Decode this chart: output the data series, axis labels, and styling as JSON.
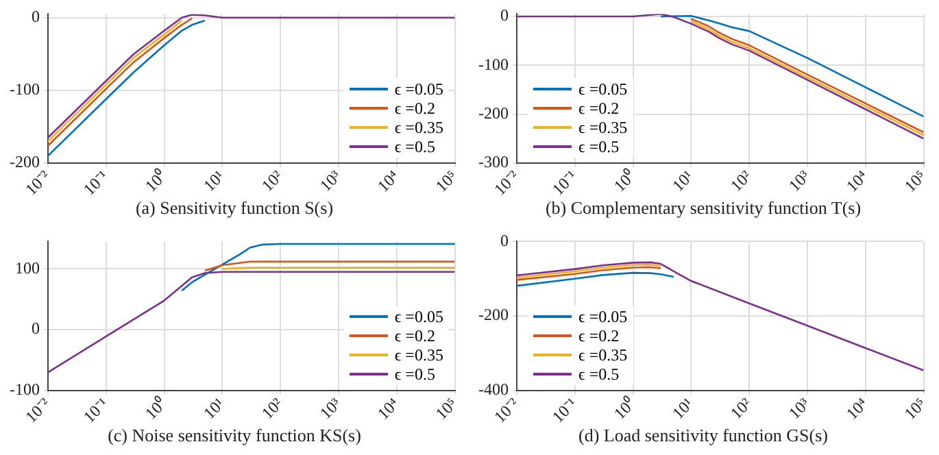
{
  "chart_data": [
    {
      "type": "line",
      "title": "(a) Sensitivity function S(s)",
      "log": "x",
      "grid": true,
      "legend": "bottom right",
      "xlim": [
        0.01,
        100000
      ],
      "xticks": [
        {
          "value": 0.01,
          "label": "10⁻²"
        },
        {
          "value": 0.1,
          "label": "10⁻¹"
        },
        {
          "value": 1,
          "label": "10⁰"
        },
        {
          "value": 10,
          "label": "10¹"
        },
        {
          "value": 100,
          "label": "10²"
        },
        {
          "value": 1000,
          "label": "10³"
        },
        {
          "value": 10000,
          "label": "10⁴"
        },
        {
          "value": 100000,
          "label": "10⁵"
        }
      ],
      "ylim": [
        -200,
        5
      ],
      "yticks": [
        -200,
        -100,
        0
      ],
      "series": [
        {
          "name": "ϵ =0.05",
          "color": "#0072bd",
          "x": [
            0.01,
            0.1,
            0.3,
            1,
            2,
            3,
            5
          ],
          "values": [
            -190,
            -112,
            -75,
            -38,
            -18,
            -10,
            -4
          ]
        },
        {
          "name": "ϵ =0.2",
          "color": "#d95319",
          "x": [
            0.01,
            0.1,
            0.3,
            1,
            2,
            3
          ],
          "values": [
            -176,
            -98,
            -61,
            -28,
            -10,
            -1
          ]
        },
        {
          "name": "ϵ =0.35",
          "color": "#edb120",
          "x": [
            0.01,
            0.1,
            0.3,
            1,
            2
          ],
          "values": [
            -170,
            -92,
            -55,
            -23,
            -4
          ]
        },
        {
          "name": "ϵ =0.5",
          "color": "#7e2f8e",
          "x": [
            0.01,
            0.1,
            0.3,
            1,
            2,
            3,
            5,
            10,
            100,
            100000
          ],
          "values": [
            -165,
            -87,
            -50,
            -18,
            0,
            4,
            3,
            0,
            0,
            0
          ]
        }
      ]
    },
    {
      "type": "line",
      "title": "(b) Complementary sensitivity function T(s)",
      "log": "x",
      "grid": true,
      "legend": "bottom left",
      "xlim": [
        0.01,
        100000
      ],
      "xticks": [
        {
          "value": 0.01,
          "label": "10⁻²"
        },
        {
          "value": 0.1,
          "label": "10⁻¹"
        },
        {
          "value": 1,
          "label": "10⁰"
        },
        {
          "value": 10,
          "label": "10¹"
        },
        {
          "value": 100,
          "label": "10²"
        },
        {
          "value": 1000,
          "label": "10³"
        },
        {
          "value": 10000,
          "label": "10⁴"
        },
        {
          "value": 100000,
          "label": "10⁵"
        }
      ],
      "ylim": [
        -300,
        5
      ],
      "yticks": [
        -300,
        -200,
        -100,
        0
      ],
      "series": [
        {
          "name": "ϵ =0.05",
          "color": "#0072bd",
          "x": [
            3,
            10,
            20,
            30,
            50,
            100,
            1000,
            10000,
            100000
          ],
          "values": [
            0,
            1,
            -8,
            -14,
            -22,
            -30,
            -85,
            -145,
            -205
          ]
        },
        {
          "name": "ϵ =0.2",
          "color": "#d95319",
          "x": [
            10,
            20,
            30,
            50,
            100,
            1000,
            10000,
            100000
          ],
          "values": [
            -5,
            -20,
            -33,
            -46,
            -59,
            -119,
            -178,
            -237
          ]
        },
        {
          "name": "ϵ =0.35",
          "color": "#edb120",
          "x": [
            10,
            20,
            30,
            50,
            100,
            1000,
            10000,
            100000
          ],
          "values": [
            -10,
            -26,
            -39,
            -52,
            -65,
            -125,
            -184,
            -243
          ]
        },
        {
          "name": "ϵ =0.5",
          "color": "#7e2f8e",
          "x": [
            0.01,
            1,
            2,
            3,
            5,
            10,
            20,
            30,
            50,
            100,
            1000,
            10000,
            100000
          ],
          "values": [
            0,
            0,
            3,
            5,
            -1,
            -15,
            -31,
            -44,
            -57,
            -70,
            -130,
            -190,
            -250
          ]
        }
      ]
    },
    {
      "type": "line",
      "title": "(c) Noise sensitivity function KS(s)",
      "log": "x",
      "grid": true,
      "legend": "bottom right",
      "xlim": [
        0.01,
        100000
      ],
      "xticks": [
        {
          "value": 0.01,
          "label": "10⁻²"
        },
        {
          "value": 0.1,
          "label": "10⁻¹"
        },
        {
          "value": 1,
          "label": "10⁰"
        },
        {
          "value": 10,
          "label": "10¹"
        },
        {
          "value": 100,
          "label": "10²"
        },
        {
          "value": 1000,
          "label": "10³"
        },
        {
          "value": 10000,
          "label": "10⁴"
        },
        {
          "value": 100000,
          "label": "10⁵"
        }
      ],
      "ylim": [
        -100,
        145
      ],
      "yticks": [
        -100,
        0,
        100
      ],
      "series": [
        {
          "name": "ϵ =0.05",
          "color": "#0072bd",
          "x": [
            2,
            3,
            20,
            30,
            50,
            100,
            100000
          ],
          "values": [
            64,
            78,
            124,
            135,
            140,
            141,
            141
          ]
        },
        {
          "name": "ϵ =0.2",
          "color": "#d95319",
          "x": [
            5,
            10,
            30,
            100000
          ],
          "values": [
            97,
            106,
            112,
            112
          ]
        },
        {
          "name": "ϵ =0.35",
          "color": "#edb120",
          "x": [
            10,
            30,
            100000
          ],
          "values": [
            100,
            102,
            102
          ]
        },
        {
          "name": "ϵ =0.5",
          "color": "#7e2f8e",
          "x": [
            0.01,
            0.1,
            1,
            2,
            3,
            5,
            10,
            100000
          ],
          "values": [
            -70,
            -11,
            48,
            72,
            86,
            93,
            95,
            95
          ]
        }
      ]
    },
    {
      "type": "line",
      "title": "(d) Load sensitivity function GS(s)",
      "log": "x",
      "grid": true,
      "legend": "bottom left",
      "xlim": [
        0.01,
        100000
      ],
      "xticks": [
        {
          "value": 0.01,
          "label": "10⁻²"
        },
        {
          "value": 0.1,
          "label": "10⁻¹"
        },
        {
          "value": 1,
          "label": "10⁰"
        },
        {
          "value": 10,
          "label": "10¹"
        },
        {
          "value": 100,
          "label": "10²"
        },
        {
          "value": 1000,
          "label": "10³"
        },
        {
          "value": 10000,
          "label": "10⁴"
        },
        {
          "value": 100000,
          "label": "10⁵"
        }
      ],
      "ylim": [
        -400,
        0
      ],
      "yticks": [
        -400,
        -200,
        0
      ],
      "series": [
        {
          "name": "ϵ =0.05",
          "color": "#0072bd",
          "x": [
            0.01,
            0.1,
            0.3,
            1,
            2,
            3,
            5
          ],
          "values": [
            -119,
            -100,
            -90,
            -84,
            -85,
            -88,
            -95
          ]
        },
        {
          "name": "ϵ =0.2",
          "color": "#d95319",
          "x": [
            0.01,
            0.1,
            0.3,
            1,
            2,
            3
          ],
          "values": [
            -103,
            -87,
            -77,
            -70,
            -69,
            -72
          ]
        },
        {
          "name": "ϵ =0.35",
          "color": "#edb120",
          "x": [
            0.01,
            0.1,
            0.3,
            1,
            2,
            3
          ],
          "values": [
            -97,
            -80,
            -70,
            -63,
            -62,
            -66
          ]
        },
        {
          "name": "ϵ =0.5",
          "color": "#7e2f8e",
          "x": [
            0.01,
            0.1,
            0.3,
            1,
            2,
            3,
            5,
            10,
            100,
            1000,
            10000,
            100000
          ],
          "values": [
            -91,
            -74,
            -64,
            -57,
            -56,
            -60,
            -80,
            -106,
            -166,
            -226,
            -286,
            -346
          ]
        }
      ]
    }
  ]
}
